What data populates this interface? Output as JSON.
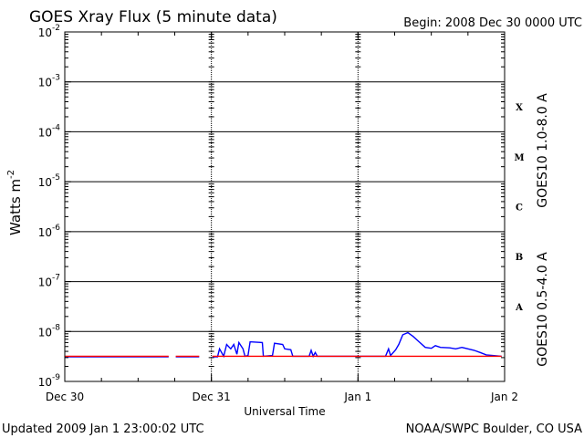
{
  "chart_data": {
    "type": "line",
    "title": "GOES Xray Flux (5 minute data)",
    "begin_label": "Begin:  2008 Dec 30 0000 UTC",
    "ylabel_main": "Watts m",
    "ylabel_sup": "-2",
    "xlabel": "Universal Time",
    "y_scale": "log",
    "ylim": [
      1e-09,
      0.01
    ],
    "y_ticks": [
      {
        "base": "10",
        "exp": "-9",
        "value": 1e-09
      },
      {
        "base": "10",
        "exp": "-8",
        "value": 1e-08
      },
      {
        "base": "10",
        "exp": "-7",
        "value": 1e-07
      },
      {
        "base": "10",
        "exp": "-6",
        "value": 1e-06
      },
      {
        "base": "10",
        "exp": "-5",
        "value": 1e-05
      },
      {
        "base": "10",
        "exp": "-4",
        "value": 0.0001
      },
      {
        "base": "10",
        "exp": "-3",
        "value": 0.001
      },
      {
        "base": "10",
        "exp": "-2",
        "value": 0.01
      }
    ],
    "xlim": [
      "2008-12-30T00:00Z",
      "2009-01-02T00:00Z"
    ],
    "x_ticks": [
      {
        "label": "Dec 30",
        "time": "2008-12-30T00:00Z"
      },
      {
        "label": "Dec 31",
        "time": "2008-12-31T00:00Z"
      },
      {
        "label": "Jan 1",
        "time": "2009-01-01T00:00Z"
      },
      {
        "label": "Jan 2",
        "time": "2009-01-02T00:00Z"
      }
    ],
    "flare_classes": [
      {
        "label": "A",
        "value": 3.16e-08
      },
      {
        "label": "B",
        "value": 3.16e-07
      },
      {
        "label": "C",
        "value": 3.16e-06
      },
      {
        "label": "M",
        "value": 3.16e-05
      },
      {
        "label": "X",
        "value": 0.000316
      }
    ],
    "grid": true,
    "series": [
      {
        "name": "GOES10 1.0-8.0 A",
        "color": "#ff0000",
        "segments": [
          [
            [
              "2008-12-30T00:00Z",
              3.2e-09
            ],
            [
              "2008-12-30T17:00Z",
              3.2e-09
            ]
          ],
          [
            [
              "2008-12-30T18:10Z",
              3.2e-09
            ],
            [
              "2008-12-30T22:00Z",
              3.2e-09
            ]
          ],
          [
            [
              "2008-12-31T00:10Z",
              3.2e-09
            ],
            [
              "2009-01-01T23:30Z",
              3.2e-09
            ]
          ]
        ]
      },
      {
        "name": "GOES10 0.5-4.0 A",
        "color": "#0000ff",
        "segments": [
          [
            [
              "2008-12-30T00:00Z",
              3.1e-09
            ],
            [
              "2008-12-30T17:00Z",
              3.1e-09
            ]
          ],
          [
            [
              "2008-12-30T18:10Z",
              3.1e-09
            ],
            [
              "2008-12-30T22:00Z",
              3.1e-09
            ]
          ],
          [
            [
              "2008-12-31T00:10Z",
              3.1e-09
            ],
            [
              "2008-12-31T01:00Z",
              3.1e-09
            ],
            [
              "2008-12-31T01:20Z",
              4.5e-09
            ],
            [
              "2008-12-31T02:00Z",
              3.2e-09
            ],
            [
              "2008-12-31T02:30Z",
              5.5e-09
            ],
            [
              "2008-12-31T03:10Z",
              4.5e-09
            ],
            [
              "2008-12-31T03:40Z",
              5.5e-09
            ],
            [
              "2008-12-31T04:10Z",
              3.5e-09
            ],
            [
              "2008-12-31T04:30Z",
              6e-09
            ],
            [
              "2008-12-31T05:10Z",
              4.5e-09
            ],
            [
              "2008-12-31T05:30Z",
              3.2e-09
            ],
            [
              "2008-12-31T06:00Z",
              3.3e-09
            ],
            [
              "2008-12-31T06:20Z",
              6.2e-09
            ],
            [
              "2008-12-31T08:20Z",
              6e-09
            ],
            [
              "2008-12-31T08:30Z",
              3.2e-09
            ],
            [
              "2008-12-31T10:00Z",
              3.3e-09
            ],
            [
              "2008-12-31T10:20Z",
              5.8e-09
            ],
            [
              "2008-12-31T11:40Z",
              5.5e-09
            ],
            [
              "2008-12-31T12:00Z",
              4.5e-09
            ],
            [
              "2008-12-31T13:00Z",
              4.3e-09
            ],
            [
              "2008-12-31T13:20Z",
              3.2e-09
            ],
            [
              "2008-12-31T16:00Z",
              3.2e-09
            ],
            [
              "2008-12-31T16:20Z",
              4.2e-09
            ],
            [
              "2008-12-31T16:40Z",
              3.2e-09
            ],
            [
              "2008-12-31T17:00Z",
              3.8e-09
            ],
            [
              "2008-12-31T17:20Z",
              3.2e-09
            ],
            [
              "2009-01-01T04:30Z",
              3.2e-09
            ],
            [
              "2009-01-01T05:00Z",
              4.5e-09
            ],
            [
              "2009-01-01T05:20Z",
              3.3e-09
            ],
            [
              "2009-01-01T06:10Z",
              4.3e-09
            ],
            [
              "2009-01-01T06:40Z",
              5.5e-09
            ],
            [
              "2009-01-01T07:20Z",
              8.6e-09
            ],
            [
              "2009-01-01T08:10Z",
              9.5e-09
            ],
            [
              "2009-01-01T09:00Z",
              8e-09
            ],
            [
              "2009-01-01T10:00Z",
              6.2e-09
            ],
            [
              "2009-01-01T11:00Z",
              4.8e-09
            ],
            [
              "2009-01-01T12:00Z",
              4.6e-09
            ],
            [
              "2009-01-01T12:40Z",
              5.2e-09
            ],
            [
              "2009-01-01T13:30Z",
              4.8e-09
            ],
            [
              "2009-01-01T15:00Z",
              4.7e-09
            ],
            [
              "2009-01-01T16:00Z",
              4.5e-09
            ],
            [
              "2009-01-01T17:00Z",
              4.8e-09
            ],
            [
              "2009-01-01T18:00Z",
              4.5e-09
            ],
            [
              "2009-01-01T19:00Z",
              4.2e-09
            ],
            [
              "2009-01-01T20:00Z",
              3.8e-09
            ],
            [
              "2009-01-01T21:00Z",
              3.4e-09
            ],
            [
              "2009-01-01T23:30Z",
              3.2e-09
            ]
          ]
        ]
      }
    ]
  },
  "footer": {
    "updated": "Updated 2009 Jan  1 23:00:02 UTC",
    "source": "NOAA/SWPC Boulder, CO USA"
  }
}
